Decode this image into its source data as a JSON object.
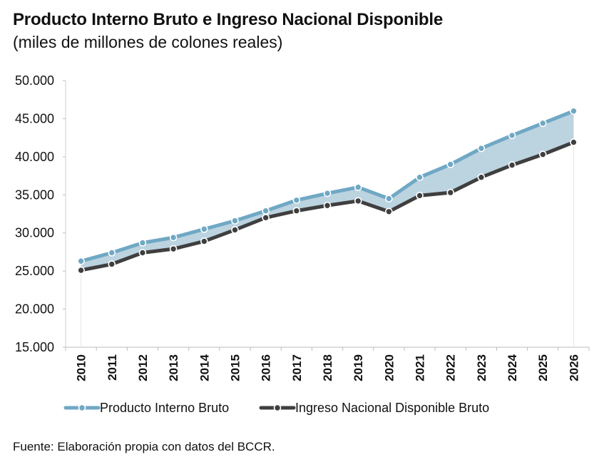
{
  "chart_data": {
    "type": "line",
    "title": "Producto Interno Bruto e Ingreso Nacional Disponible",
    "subtitle": "(miles de millones de colones reales)",
    "categories": [
      "2010",
      "2011",
      "2012",
      "2013",
      "2014",
      "2015",
      "2016",
      "2017",
      "2018",
      "2019",
      "2020",
      "2021",
      "2022",
      "2023",
      "2024",
      "2025",
      "2026"
    ],
    "ylim": [
      15000,
      50000
    ],
    "yticks": [
      "15.000",
      "20.000",
      "25.000",
      "30.000",
      "35.000",
      "40.000",
      "45.000",
      "50.000"
    ],
    "ytick_values": [
      15000,
      20000,
      25000,
      30000,
      35000,
      40000,
      45000,
      50000
    ],
    "series": [
      {
        "name": "Producto Interno Bruto",
        "color": "#6fa8c4",
        "values": [
          26300,
          27400,
          28700,
          29400,
          30500,
          31600,
          32900,
          34300,
          35200,
          36000,
          34500,
          37300,
          39000,
          41100,
          42800,
          44400,
          46000
        ]
      },
      {
        "name": "Ingreso Nacional Disponible Bruto",
        "color": "#3f3f3f",
        "values": [
          25100,
          25900,
          27400,
          27900,
          28900,
          30400,
          32000,
          32900,
          33600,
          34200,
          32800,
          34900,
          35300,
          37300,
          38900,
          40300,
          41900
        ]
      }
    ],
    "area_fill_color": "#bcd3e0",
    "legend_position": "bottom"
  },
  "source": "Fuente: Elaboración propia con datos del BCCR."
}
